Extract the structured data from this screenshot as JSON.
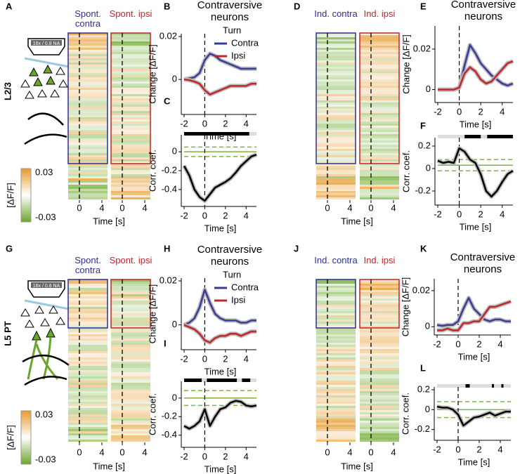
{
  "panel_letters": [
    "A",
    "B",
    "C",
    "D",
    "E",
    "F",
    "G",
    "H",
    "I",
    "J",
    "K",
    "L"
  ],
  "rows": [
    {
      "layer": "L2/3",
      "objective": "16x / 0.8 NA",
      "colorbar_label": "[ΔF/F]",
      "colorbar_ticks": [
        0.03,
        -0.03
      ]
    },
    {
      "layer": "L5 PT",
      "objective": "16x / 0.8 NA",
      "colorbar_label": "[ΔF/F]",
      "colorbar_ticks": [
        0.03,
        -0.03
      ]
    }
  ],
  "heatmaps": [
    {
      "titles": [
        "Spont. contra",
        "Spont. ipsi"
      ],
      "xlim": [
        -2,
        5
      ],
      "xticks": [
        0,
        4
      ],
      "xlabel": "Time [s]"
    },
    {
      "titles": [
        "Ind. contra",
        "Ind. ipsi"
      ],
      "xlim": [
        -2,
        5
      ],
      "xticks": [
        0,
        4
      ],
      "xlabel": "Time [s]"
    },
    {
      "titles": [
        "Spont. contra",
        "Spont. ipsi"
      ],
      "xlim": [
        -2,
        5
      ],
      "xticks": [
        0,
        4
      ],
      "xlabel": "Time [s]"
    },
    {
      "titles": [
        "Ind. contra",
        "Ind. ipsi"
      ],
      "xlim": [
        -2,
        5
      ],
      "xticks": [
        0,
        4
      ],
      "xlabel": "Time [s]"
    }
  ],
  "chart_data": [
    {
      "type": "line",
      "title": "Contraversive neurons",
      "xlabel": "Time [s]",
      "ylabel": "Change [ΔF/F]",
      "legend_title": "Turn",
      "legend": "upper right",
      "xlim": [
        -2,
        5
      ],
      "xticks": [
        -2,
        0,
        2,
        4
      ],
      "ylim": [
        -0.015,
        0.02
      ],
      "yticks": [
        0,
        0.02
      ],
      "marker_x": 0,
      "x": [
        -2,
        -1.5,
        -1,
        -0.5,
        0,
        0.5,
        1,
        1.5,
        2,
        2.5,
        3,
        3.5,
        4,
        4.5,
        5
      ],
      "series": [
        {
          "name": "Contra",
          "color": "#3a3c96",
          "values": [
            0,
            0.0005,
            0.001,
            0.003,
            0.009,
            0.012,
            0.011,
            0.009,
            0.008,
            0.007,
            0.006,
            0.005,
            0.005,
            0.005,
            0.005
          ]
        },
        {
          "name": "Ipsi",
          "color": "#c0272d",
          "values": [
            0,
            -0.0003,
            -0.001,
            -0.002,
            -0.005,
            -0.007,
            -0.006,
            -0.005,
            -0.004,
            -0.003,
            -0.003,
            -0.003,
            -0.003,
            -0.002,
            -0.002
          ]
        }
      ]
    },
    {
      "type": "line",
      "xlabel": "Time [s]",
      "ylabel": "Corr. coef.",
      "xlim": [
        -2,
        5
      ],
      "xticks": [
        -2,
        0,
        2,
        4
      ],
      "ylim": [
        -0.55,
        0.15
      ],
      "yticks": [
        -0.4,
        -0.2,
        0
      ],
      "marker_x": 0,
      "reference_lines": [
        {
          "value": 0,
          "style": "solid"
        },
        {
          "value": 0.05,
          "style": "dashed"
        },
        {
          "value": -0.05,
          "style": "dashed"
        }
      ],
      "reference_color": "#7cb342",
      "significant_intervals": [
        [
          -2,
          4.3
        ]
      ],
      "x": [
        -2,
        -1.5,
        -1,
        -0.5,
        0,
        0.5,
        1,
        1.5,
        2,
        2.5,
        3,
        3.5,
        4,
        4.5,
        5
      ],
      "series": [
        {
          "color": "#000000",
          "values": [
            -0.15,
            -0.25,
            -0.4,
            -0.48,
            -0.52,
            -0.45,
            -0.38,
            -0.35,
            -0.32,
            -0.28,
            -0.22,
            -0.15,
            -0.1,
            -0.05,
            -0.03
          ]
        }
      ]
    },
    {
      "type": "line",
      "title": "Contraversive neurons",
      "xlabel": "Time [s]",
      "ylabel": "Change [ΔF/F]",
      "xlim": [
        -2,
        5
      ],
      "xticks": [
        -2,
        0,
        2,
        4
      ],
      "ylim": [
        -0.005,
        0.03
      ],
      "yticks": [
        0,
        0.02
      ],
      "marker_x": 0,
      "x": [
        -2,
        -1.5,
        -1,
        -0.5,
        0,
        0.5,
        1,
        1.5,
        2,
        2.5,
        3,
        3.5,
        4,
        4.5,
        5
      ],
      "series": [
        {
          "name": "Contra",
          "color": "#3a3c96",
          "values": [
            0,
            0,
            0,
            0,
            0.001,
            0.012,
            0.022,
            0.018,
            0.013,
            0.01,
            0.007,
            0.005,
            0.003,
            0.002,
            0.003
          ]
        },
        {
          "name": "Ipsi",
          "color": "#c0272d",
          "values": [
            0,
            0,
            0,
            0,
            0.001,
            0.008,
            0.011,
            0.009,
            0.005,
            0.003,
            0.004,
            0.007,
            0.01,
            0.013,
            0.014
          ]
        }
      ]
    },
    {
      "type": "line",
      "xlabel": "Time [s]",
      "ylabel": "Corr. coef.",
      "xlim": [
        -2,
        5
      ],
      "xticks": [
        -2,
        0,
        2,
        4
      ],
      "ylim": [
        -0.3,
        0.25
      ],
      "yticks": [
        -0.2,
        0,
        0.2
      ],
      "marker_x": 0,
      "reference_lines": [
        {
          "value": 0.03,
          "style": "solid"
        },
        {
          "value": 0.08,
          "style": "dashed"
        },
        {
          "value": -0.02,
          "style": "dashed"
        }
      ],
      "reference_color": "#7cb342",
      "significant_intervals": [
        [
          0.5,
          2
        ],
        [
          2.6,
          5
        ]
      ],
      "x": [
        -2,
        -1.5,
        -1,
        -0.5,
        0,
        0.5,
        1,
        1.5,
        2,
        2.5,
        3,
        3.5,
        4,
        4.5,
        5
      ],
      "series": [
        {
          "color": "#000000",
          "values": [
            0.07,
            0.05,
            0.06,
            0.05,
            0.18,
            0.15,
            0.08,
            0.05,
            -0.05,
            -0.2,
            -0.25,
            -0.2,
            -0.12,
            -0.05,
            -0.02
          ]
        }
      ]
    },
    {
      "type": "line",
      "title": "Contraversive neurons",
      "xlabel": "Time [s]",
      "ylabel": "Change [ΔF/F]",
      "legend_title": "Turn",
      "legend": "upper right",
      "xlim": [
        -2,
        5
      ],
      "xticks": [
        -2,
        0,
        2,
        4
      ],
      "ylim": [
        -0.01,
        0.02
      ],
      "yticks": [
        0,
        0.02
      ],
      "marker_x": 0,
      "x": [
        -2,
        -1.5,
        -1,
        -0.5,
        0,
        0.5,
        1,
        1.5,
        2,
        2.5,
        3,
        3.5,
        4,
        4.5,
        5
      ],
      "series": [
        {
          "name": "Contra",
          "color": "#3a3c96",
          "values": [
            0,
            0.001,
            0.003,
            0.008,
            0.016,
            0.01,
            0.005,
            0.003,
            0.002,
            0.002,
            0.002,
            0.001,
            0.001,
            0.002,
            0.002
          ]
        },
        {
          "name": "Ipsi",
          "color": "#c0272d",
          "values": [
            0,
            -0.001,
            -0.002,
            -0.004,
            -0.007,
            -0.008,
            -0.006,
            -0.005,
            -0.005,
            -0.004,
            -0.004,
            -0.005,
            -0.004,
            -0.003,
            -0.003
          ]
        }
      ]
    },
    {
      "type": "line",
      "xlabel": "Time [s]",
      "ylabel": "Corr. coef.",
      "xlim": [
        -2,
        5
      ],
      "xticks": [
        -2,
        0,
        2,
        4
      ],
      "ylim": [
        -0.5,
        0.15
      ],
      "yticks": [
        -0.4,
        -0.2,
        0
      ],
      "marker_x": 0,
      "reference_lines": [
        {
          "value": 0,
          "style": "solid"
        },
        {
          "value": 0.08,
          "style": "dashed"
        },
        {
          "value": -0.08,
          "style": "dashed"
        }
      ],
      "reference_color": "#7cb342",
      "significant_intervals": [
        [
          -2,
          -0.3
        ],
        [
          0.2,
          3.1
        ],
        [
          3.6,
          4.4
        ]
      ],
      "x": [
        -2,
        -1.5,
        -1,
        -0.5,
        0,
        0.5,
        1,
        1.5,
        2,
        2.5,
        3,
        3.5,
        4,
        4.5,
        5
      ],
      "series": [
        {
          "color": "#000000",
          "values": [
            -0.3,
            -0.33,
            -0.3,
            -0.25,
            -0.12,
            -0.3,
            -0.2,
            -0.12,
            -0.1,
            -0.05,
            -0.03,
            -0.04,
            -0.08,
            -0.09,
            -0.08
          ]
        }
      ]
    },
    {
      "type": "line",
      "title": "Contraversive neurons",
      "xlabel": "Time [s]",
      "ylabel": "Change [ΔF/F]",
      "xlim": [
        -2,
        5
      ],
      "xticks": [
        -2,
        0,
        2,
        4
      ],
      "ylim": [
        -0.003,
        0.025
      ],
      "yticks": [
        0,
        0.02
      ],
      "marker_x": 0,
      "x": [
        -2,
        -1.5,
        -1,
        -0.5,
        0,
        0.5,
        1,
        1.5,
        2,
        2.5,
        3,
        3.5,
        4,
        4.5,
        5
      ],
      "series": [
        {
          "name": "Contra",
          "color": "#3a3c96",
          "values": [
            0.001,
            0.0005,
            0.001,
            0.001,
            0.003,
            0.01,
            0.016,
            0.01,
            0.007,
            0.004,
            0.003,
            0.004,
            0.004,
            0.003,
            0.003
          ]
        },
        {
          "name": "Ipsi",
          "color": "#c0272d",
          "values": [
            -0.002,
            -0.002,
            -0.001,
            -0.002,
            -0.002,
            0.002,
            0.002,
            0.003,
            0.003,
            0.007,
            0.011,
            0.011,
            0.012,
            0.013,
            0.014
          ]
        }
      ]
    },
    {
      "type": "line",
      "xlabel": "Time [s]",
      "ylabel": "Corr. coef.",
      "xlim": [
        -2,
        5
      ],
      "xticks": [
        -2,
        0,
        2,
        4
      ],
      "ylim": [
        -0.28,
        0.2
      ],
      "yticks": [
        -0.2,
        0,
        0.2
      ],
      "marker_x": 0,
      "reference_lines": [
        {
          "value": 0,
          "style": "solid"
        },
        {
          "value": 0.08,
          "style": "dashed"
        },
        {
          "value": -0.08,
          "style": "dashed"
        }
      ],
      "reference_color": "#7cb342",
      "significant_intervals": [
        [
          0.7,
          1.1
        ],
        [
          3.2,
          3.4
        ],
        [
          4.1,
          4.3
        ]
      ],
      "x": [
        -2,
        -1.5,
        -1,
        -0.5,
        0,
        0.5,
        1,
        1.5,
        2,
        2.5,
        3,
        3.5,
        4,
        4.5,
        5
      ],
      "series": [
        {
          "color": "#000000",
          "values": [
            0.03,
            0.02,
            0.02,
            0,
            -0.05,
            -0.16,
            -0.12,
            -0.08,
            -0.07,
            -0.05,
            -0.03,
            -0.06,
            -0.04,
            -0.02,
            -0.02
          ]
        }
      ]
    }
  ]
}
